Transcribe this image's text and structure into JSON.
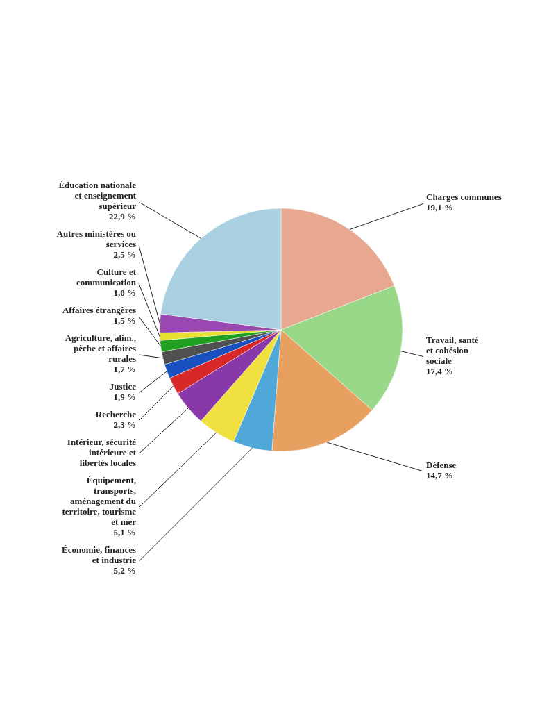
{
  "chart_data": {
    "type": "pie",
    "categories": [
      "Charges communes",
      "Travail, santé et cohésion sociale",
      "Défense",
      "Économie, finances et industrie",
      "Équipement, transports, aménagement du territoire, tourisme et mer",
      "Intérieur, sécurité intérieure et libertés locales",
      "Recherche",
      "Justice",
      "Agriculture, alim., pêche et affaires rurales",
      "Affaires étrangères",
      "Culture et communication",
      "Autres ministères ou services",
      "Éducation nationale et enseignement supérieur"
    ],
    "values": [
      19.1,
      17.4,
      14.7,
      5.2,
      5.1,
      4.7,
      2.3,
      1.9,
      1.7,
      1.5,
      1.0,
      2.5,
      22.9
    ],
    "value_labels": [
      "19,1 %",
      "17,4 %",
      "14,7 %",
      "5,2 %",
      "5,1 %",
      null,
      "2,3 %",
      "1,9 %",
      "1,7 %",
      "1,5 %",
      "1,0 %",
      "2,5 %",
      "22,9 %"
    ],
    "colors": [
      "#e8a890",
      "#98d888",
      "#e8a060",
      "#50a8d8",
      "#f0e040",
      "#8838a8",
      "#d82828",
      "#1850c0",
      "#505050",
      "#20a020",
      "#e8e030",
      "#9848b0",
      "#a8d0e0"
    ],
    "legend": false
  }
}
